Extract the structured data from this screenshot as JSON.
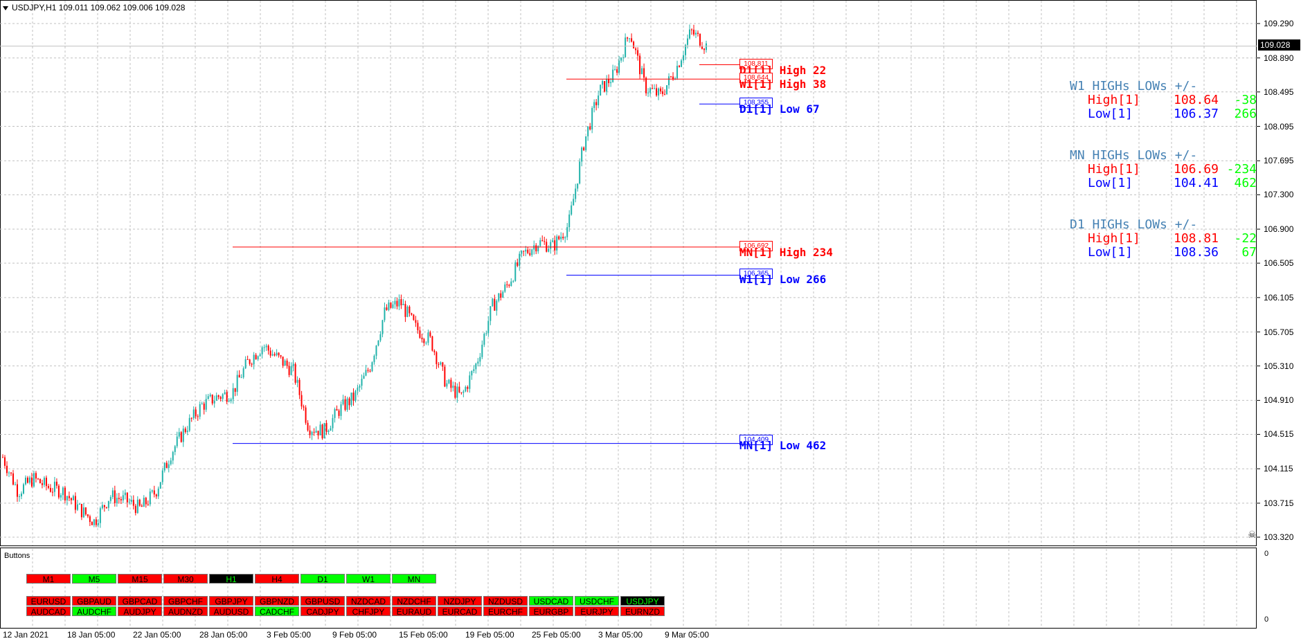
{
  "header": {
    "symbol_info": "USDJPY,H1  109.011 109.062 109.006 109.028"
  },
  "price_axis": {
    "ticks": [
      "109.290",
      "108.890",
      "108.495",
      "108.095",
      "107.695",
      "107.300",
      "106.900",
      "106.505",
      "106.105",
      "105.705",
      "105.310",
      "104.910",
      "104.515",
      "104.115",
      "103.715",
      "103.320"
    ]
  },
  "current_price": "109.028",
  "levels": [
    {
      "box": "108.811",
      "label": "D1[1] High  22",
      "color": "#ff0000"
    },
    {
      "box": "108.644",
      "label": "W1[1] High  38",
      "color": "#ff0000"
    },
    {
      "box": "108.355",
      "label": "D1[1] Low  67",
      "color": "#0000ff"
    },
    {
      "box": "106.692",
      "label": "MN[1] High  234",
      "color": "#ff0000"
    },
    {
      "box": "106.365",
      "label": "W1[1] Low  266",
      "color": "#0000ff"
    },
    {
      "box": "104.409",
      "label": "MN[1] Low  462",
      "color": "#0000ff"
    }
  ],
  "panels": [
    {
      "title": "W1 HIGHs LOWs +/-",
      "high_label": "High[1]",
      "high_value": "108.64",
      "high_delta": "-38",
      "low_label": "Low[1]",
      "low_value": "106.37",
      "low_delta": "266"
    },
    {
      "title": "MN HIGHs LOWs +/-",
      "high_label": "High[1]",
      "high_value": "106.69",
      "high_delta": "-234",
      "low_label": "Low[1]",
      "low_value": "104.41",
      "low_delta": "462"
    },
    {
      "title": "D1 HIGHs LOWs +/-",
      "high_label": "High[1]",
      "high_value": "108.81",
      "high_delta": "-22",
      "low_label": "Low[1]",
      "low_value": "108.36",
      "low_delta": "67"
    }
  ],
  "indicator": {
    "title": "Buttons",
    "axis_top": "0",
    "axis_bottom": "0"
  },
  "timeframe_buttons": [
    {
      "label": "M1",
      "color": "#ff0000"
    },
    {
      "label": "M5",
      "color": "#00ff00"
    },
    {
      "label": "M15",
      "color": "#ff0000"
    },
    {
      "label": "M30",
      "color": "#ff0000"
    },
    {
      "label": "H1",
      "color": "#000000"
    },
    {
      "label": "H4",
      "color": "#ff0000"
    },
    {
      "label": "D1",
      "color": "#00ff00"
    },
    {
      "label": "W1",
      "color": "#00ff00"
    },
    {
      "label": "MN",
      "color": "#00ff00"
    }
  ],
  "pair_buttons_row1": [
    {
      "label": "EURUSD",
      "color": "#ff0000"
    },
    {
      "label": "GBPAUD",
      "color": "#ff0000"
    },
    {
      "label": "GBPCAD",
      "color": "#ff0000"
    },
    {
      "label": "GBPCHF",
      "color": "#ff0000"
    },
    {
      "label": "GBPJPY",
      "color": "#ff0000"
    },
    {
      "label": "GBPNZD",
      "color": "#ff0000"
    },
    {
      "label": "GBPUSD",
      "color": "#ff0000"
    },
    {
      "label": "NZDCAD",
      "color": "#ff0000"
    },
    {
      "label": "NZDCHF",
      "color": "#ff0000"
    },
    {
      "label": "NZDJPY",
      "color": "#ff0000"
    },
    {
      "label": "NZDUSD",
      "color": "#ff0000"
    },
    {
      "label": "USDCAD",
      "color": "#00ff00"
    },
    {
      "label": "USDCHF",
      "color": "#00ff00"
    },
    {
      "label": "USDJPY",
      "color": "#000000"
    }
  ],
  "pair_buttons_row2": [
    {
      "label": "AUDCAD",
      "color": "#ff0000"
    },
    {
      "label": "AUDCHF",
      "color": "#00ff00"
    },
    {
      "label": "AUDJPY",
      "color": "#ff0000"
    },
    {
      "label": "AUDNZD",
      "color": "#ff0000"
    },
    {
      "label": "AUDUSD",
      "color": "#ff0000"
    },
    {
      "label": "CADCHF",
      "color": "#00ff00"
    },
    {
      "label": "CADJPY",
      "color": "#ff0000"
    },
    {
      "label": "CHFJPY",
      "color": "#ff0000"
    },
    {
      "label": "EURAUD",
      "color": "#ff0000"
    },
    {
      "label": "EURCAD",
      "color": "#ff0000"
    },
    {
      "label": "EURCHF",
      "color": "#ff0000"
    },
    {
      "label": "EURGBP",
      "color": "#ff0000"
    },
    {
      "label": "EURJPY",
      "color": "#ff0000"
    },
    {
      "label": "EURNZD",
      "color": "#ff0000"
    }
  ],
  "date_axis": {
    "labels": [
      "12 Jan 2021",
      "18 Jan 05:00",
      "22 Jan 05:00",
      "28 Jan 05:00",
      "3 Feb 05:00",
      "9 Feb 05:00",
      "15 Feb 05:00",
      "19 Feb 05:00",
      "25 Feb 05:00",
      "3 Mar 05:00",
      "9 Mar 05:00"
    ]
  },
  "chart_data": {
    "type": "candlestick",
    "symbol": "USDJPY",
    "timeframe": "H1",
    "ylim": [
      103.2,
      109.45
    ],
    "up_color": "#20b2aa",
    "down_color": "#ff0000",
    "bg_color": "#ffffff",
    "grid": true,
    "close_path": [
      [
        "12 Jan 2021",
        104.25
      ],
      [
        "14 Jan",
        103.85
      ],
      [
        "15 Jan",
        104.0
      ],
      [
        "18 Jan 05:00",
        103.9
      ],
      [
        "19 Jan",
        103.85
      ],
      [
        "20 Jan",
        103.65
      ],
      [
        "21 Jan",
        103.5
      ],
      [
        "22 Jan 05:00",
        103.8
      ],
      [
        "25 Jan",
        103.75
      ],
      [
        "26 Jan",
        103.65
      ],
      [
        "27 Jan",
        103.85
      ],
      [
        "28 Jan 05:00",
        104.3
      ],
      [
        "29 Jan",
        104.6
      ],
      [
        "1 Feb",
        104.85
      ],
      [
        "2 Feb",
        104.95
      ],
      [
        "3 Feb 05:00",
        105.0
      ],
      [
        "4 Feb",
        105.35
      ],
      [
        "5 Feb",
        105.55
      ],
      [
        "5 Feb",
        105.4
      ],
      [
        "8 Feb",
        105.25
      ],
      [
        "9 Feb 05:00",
        104.6
      ],
      [
        "10 Feb",
        104.55
      ],
      [
        "11 Feb",
        104.8
      ],
      [
        "12 Feb",
        104.95
      ],
      [
        "15 Feb 05:00",
        105.3
      ],
      [
        "16 Feb",
        105.95
      ],
      [
        "17 Feb",
        106.05
      ],
      [
        "18 Feb",
        105.75
      ],
      [
        "19 Feb",
        105.6
      ],
      [
        "19 Feb 05:00",
        105.1
      ],
      [
        "22 Feb",
        104.95
      ],
      [
        "23 Feb",
        105.35
      ],
      [
        "24 Feb",
        106.0
      ],
      [
        "25 Feb 05:00",
        106.25
      ],
      [
        "26 Feb",
        106.6
      ],
      [
        "1 Mar",
        106.75
      ],
      [
        "2 Mar",
        106.7
      ],
      [
        "3 Mar 05:00",
        106.95
      ],
      [
        "4 Mar",
        107.9
      ],
      [
        "5 Mar",
        108.5
      ],
      [
        "8 Mar",
        108.7
      ],
      [
        "8 Mar",
        109.2
      ],
      [
        "9 Mar 05:00",
        108.55
      ],
      [
        "10 Mar",
        108.45
      ],
      [
        "11 Mar",
        108.75
      ],
      [
        "12 Mar",
        109.2
      ],
      [
        "12 Mar",
        109.03
      ]
    ],
    "hlines": [
      {
        "label": "D1[1] High",
        "value": 108.811
      },
      {
        "label": "W1[1] High",
        "value": 108.644
      },
      {
        "label": "D1[1] Low",
        "value": 108.355
      },
      {
        "label": "MN[1] High",
        "value": 106.692
      },
      {
        "label": "W1[1] Low",
        "value": 106.365
      },
      {
        "label": "MN[1] Low",
        "value": 104.409
      }
    ]
  }
}
